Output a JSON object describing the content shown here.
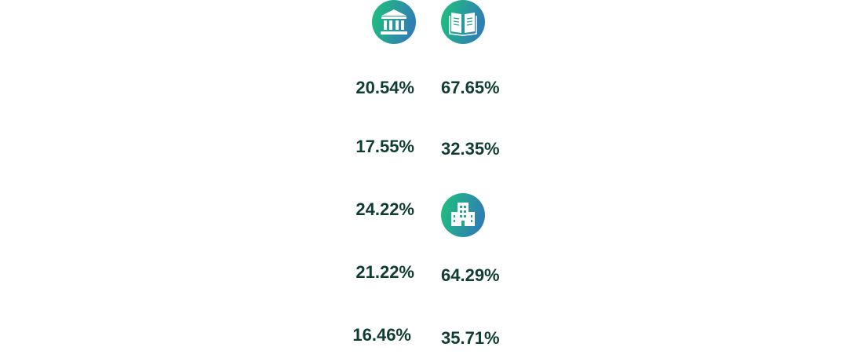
{
  "left_column": {
    "values": [
      "20.54%",
      "17.55%",
      "24.22%",
      "21.22%",
      "16.46%"
    ]
  },
  "right_column": {
    "group_1": {
      "values": [
        "67.65%",
        "32.35%"
      ]
    },
    "group_2": {
      "values": [
        "64.29%",
        "35.71%"
      ]
    }
  }
}
